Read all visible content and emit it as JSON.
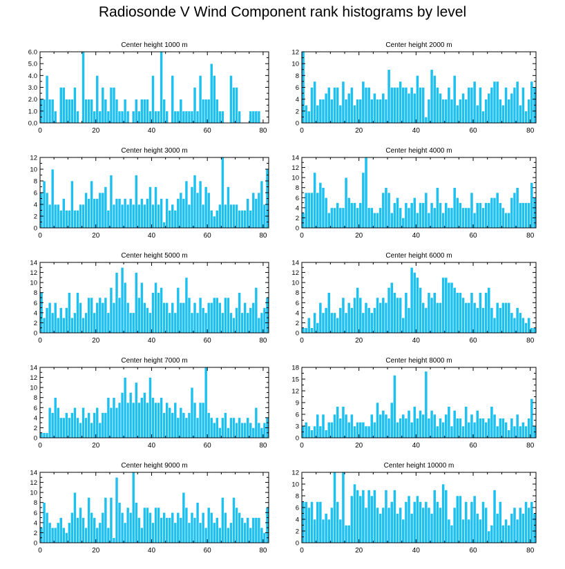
{
  "title": "Radiosonde V Wind Component rank histograms by level",
  "colors": {
    "bar": "#1ec0f0",
    "bar_stroke": "#ffffff",
    "axis": "#000000"
  },
  "chart_data": [
    {
      "type": "bar",
      "title": "Center height 1000 m",
      "xlim": [
        0,
        82
      ],
      "ylim": [
        0,
        6
      ],
      "x_ticks": [
        0,
        20,
        40,
        60,
        80
      ],
      "y_ticks": [
        0,
        1,
        2,
        3,
        4,
        5,
        6
      ],
      "y_tick_labels": [
        "0.0",
        "1.0",
        "2.0",
        "3.0",
        "4.0",
        "5.0",
        "6.0"
      ],
      "values": [
        2,
        2,
        4,
        2,
        2,
        1,
        0,
        3,
        3,
        2,
        2,
        2,
        3,
        1,
        0,
        6,
        2,
        2,
        2,
        1,
        4,
        1,
        3,
        2,
        1,
        3,
        3,
        2,
        1,
        1,
        2,
        1,
        0,
        1,
        2,
        1,
        2,
        2,
        2,
        1,
        4,
        1,
        1,
        6,
        2,
        1,
        0,
        4,
        1,
        1,
        2,
        1,
        1,
        1,
        1,
        3,
        1,
        4,
        2,
        2,
        2,
        5,
        4,
        2,
        1,
        1,
        0,
        0,
        4,
        3,
        3,
        1,
        0,
        0,
        0,
        1,
        1,
        1,
        1,
        0,
        0,
        0
      ]
    },
    {
      "type": "bar",
      "title": "Center height 2000 m",
      "xlim": [
        0,
        82
      ],
      "ylim": [
        0,
        12
      ],
      "x_ticks": [
        0,
        20,
        40,
        60,
        80
      ],
      "y_ticks": [
        0,
        2,
        4,
        6,
        8,
        10,
        12
      ],
      "y_tick_labels": [
        "0",
        "2",
        "4",
        "6",
        "8",
        "10",
        "12"
      ],
      "values": [
        12,
        3,
        2,
        6,
        7,
        3,
        4,
        4,
        5,
        6,
        4,
        6,
        6,
        3,
        7,
        4,
        5,
        6,
        3,
        4,
        4,
        7,
        6,
        6,
        4,
        5,
        4,
        4,
        5,
        4,
        9,
        6,
        6,
        6,
        7,
        6,
        6,
        5,
        6,
        5,
        8,
        6,
        6,
        1,
        4,
        9,
        8,
        6,
        5,
        4,
        4,
        6,
        4,
        8,
        3,
        4,
        5,
        4,
        6,
        6,
        7,
        3,
        6,
        2,
        4,
        5,
        6,
        7,
        7,
        4,
        3,
        6,
        4,
        5,
        6,
        7,
        3,
        6,
        2,
        4,
        7,
        6
      ]
    },
    {
      "type": "bar",
      "title": "Center height 3000 m",
      "xlim": [
        0,
        82
      ],
      "ylim": [
        0,
        12
      ],
      "x_ticks": [
        0,
        20,
        40,
        60,
        80
      ],
      "y_ticks": [
        0,
        2,
        4,
        6,
        8,
        10,
        12
      ],
      "y_tick_labels": [
        "0",
        "2",
        "4",
        "6",
        "8",
        "10",
        "12"
      ],
      "values": [
        6,
        8,
        6,
        4,
        10,
        4,
        4,
        3,
        5,
        3,
        3,
        8,
        3,
        3,
        4,
        4,
        6,
        5,
        8,
        5,
        5,
        6,
        6,
        7,
        3,
        9,
        4,
        5,
        5,
        4,
        5,
        4,
        5,
        4,
        9,
        4,
        5,
        4,
        5,
        7,
        4,
        7,
        4,
        5,
        1,
        5,
        3,
        4,
        3,
        5,
        6,
        5,
        8,
        4,
        7,
        9,
        6,
        8,
        4,
        7,
        6,
        3,
        2,
        3,
        4,
        12,
        4,
        7,
        4,
        4,
        4,
        3,
        3,
        3,
        5,
        3,
        6,
        5,
        6,
        8,
        4,
        10
      ]
    },
    {
      "type": "bar",
      "title": "Center height 4000 m",
      "xlim": [
        0,
        82
      ],
      "ylim": [
        0,
        14
      ],
      "x_ticks": [
        0,
        20,
        40,
        60,
        80
      ],
      "y_ticks": [
        0,
        2,
        4,
        6,
        8,
        10,
        12,
        14
      ],
      "y_tick_labels": [
        "0",
        "2",
        "4",
        "6",
        "8",
        "10",
        "12",
        "14"
      ],
      "values": [
        3,
        7,
        7,
        7,
        11,
        7,
        9,
        8,
        6,
        3,
        4,
        4,
        5,
        4,
        4,
        10,
        6,
        5,
        5,
        4,
        5,
        11,
        14,
        4,
        4,
        3,
        3,
        4,
        7,
        8,
        7,
        3,
        5,
        6,
        4,
        2,
        5,
        4,
        5,
        6,
        3,
        5,
        5,
        7,
        3,
        5,
        4,
        8,
        5,
        3,
        5,
        4,
        4,
        8,
        6,
        5,
        4,
        4,
        4,
        7,
        3,
        5,
        5,
        4,
        5,
        5,
        6,
        6,
        7,
        5,
        4,
        3,
        3,
        6,
        7,
        8,
        5,
        5,
        5,
        5,
        9,
        6
      ]
    },
    {
      "type": "bar",
      "title": "Center height 5000 m",
      "xlim": [
        0,
        82
      ],
      "ylim": [
        0,
        14
      ],
      "x_ticks": [
        0,
        20,
        40,
        60,
        80
      ],
      "y_ticks": [
        0,
        2,
        4,
        6,
        8,
        10,
        12,
        14
      ],
      "y_tick_labels": [
        "0",
        "2",
        "4",
        "6",
        "8",
        "10",
        "12",
        "14"
      ],
      "values": [
        8,
        3,
        5,
        6,
        4,
        6,
        3,
        5,
        3,
        5,
        8,
        3,
        4,
        8,
        6,
        3,
        4,
        7,
        7,
        4,
        6,
        7,
        6,
        7,
        4,
        9,
        6,
        12,
        7,
        13,
        10,
        6,
        4,
        4,
        12,
        7,
        10,
        6,
        5,
        4,
        8,
        10,
        8,
        9,
        6,
        6,
        4,
        6,
        4,
        9,
        6,
        6,
        11,
        7,
        4,
        6,
        4,
        7,
        5,
        4,
        6,
        6,
        7,
        7,
        6,
        4,
        7,
        7,
        4,
        3,
        5,
        8,
        4,
        6,
        4,
        5,
        6,
        9,
        3,
        4,
        5,
        7
      ]
    },
    {
      "type": "bar",
      "title": "Center height 6000 m",
      "xlim": [
        0,
        82
      ],
      "ylim": [
        0,
        14
      ],
      "x_ticks": [
        0,
        20,
        40,
        60,
        80
      ],
      "y_ticks": [
        0,
        2,
        4,
        6,
        8,
        10,
        12,
        14
      ],
      "y_tick_labels": [
        "0",
        "2",
        "4",
        "6",
        "8",
        "10",
        "12",
        "14"
      ],
      "values": [
        1,
        1,
        3,
        1,
        4,
        2,
        6,
        4,
        5,
        8,
        4,
        4,
        3,
        5,
        7,
        4,
        6,
        5,
        7,
        9,
        7,
        4,
        6,
        5,
        4,
        5,
        7,
        6,
        7,
        6,
        9,
        10,
        8,
        7,
        7,
        3,
        8,
        5,
        13,
        12,
        11,
        9,
        6,
        5,
        8,
        7,
        8,
        6,
        6,
        11,
        11,
        10,
        10,
        9,
        8,
        8,
        7,
        6,
        6,
        8,
        6,
        5,
        8,
        5,
        8,
        9,
        5,
        3,
        6,
        5,
        6,
        6,
        6,
        4,
        3,
        5,
        4,
        3,
        2,
        3,
        1,
        1
      ]
    },
    {
      "type": "bar",
      "title": "Center height 7000 m",
      "xlim": [
        0,
        82
      ],
      "ylim": [
        0,
        14
      ],
      "x_ticks": [
        0,
        20,
        40,
        60,
        80
      ],
      "y_ticks": [
        0,
        2,
        4,
        6,
        8,
        10,
        12,
        14
      ],
      "y_tick_labels": [
        "0",
        "2",
        "4",
        "6",
        "8",
        "10",
        "12",
        "14"
      ],
      "values": [
        1,
        1,
        1,
        6,
        5,
        8,
        6,
        4,
        4,
        5,
        4,
        5,
        6,
        4,
        3,
        6,
        4,
        5,
        3,
        5,
        6,
        3,
        5,
        5,
        8,
        6,
        8,
        6,
        7,
        9,
        12,
        7,
        9,
        7,
        11,
        7,
        8,
        9,
        7,
        12,
        8,
        7,
        7,
        8,
        5,
        7,
        6,
        5,
        7,
        4,
        6,
        5,
        4,
        5,
        10,
        7,
        4,
        7,
        7,
        14,
        5,
        4,
        3,
        4,
        2,
        4,
        5,
        2,
        4,
        4,
        3,
        4,
        3,
        3,
        4,
        3,
        2,
        6,
        3,
        2,
        3,
        4
      ]
    },
    {
      "type": "bar",
      "title": "Center height 8000 m",
      "xlim": [
        0,
        82
      ],
      "ylim": [
        0,
        18
      ],
      "x_ticks": [
        0,
        20,
        40,
        60,
        80
      ],
      "y_ticks": [
        0,
        3,
        6,
        9,
        12,
        15,
        18
      ],
      "y_tick_labels": [
        "0",
        "3",
        "6",
        "9",
        "12",
        "15",
        "18"
      ],
      "values": [
        3,
        4,
        3,
        2,
        3,
        6,
        3,
        6,
        2,
        4,
        4,
        6,
        8,
        5,
        8,
        6,
        4,
        6,
        3,
        4,
        4,
        4,
        3,
        3,
        6,
        4,
        9,
        6,
        7,
        6,
        5,
        9,
        16,
        4,
        5,
        6,
        5,
        7,
        4,
        8,
        5,
        7,
        6,
        17,
        5,
        7,
        6,
        3,
        5,
        4,
        6,
        8,
        3,
        7,
        5,
        5,
        3,
        8,
        4,
        6,
        4,
        7,
        5,
        5,
        4,
        5,
        8,
        6,
        3,
        5,
        5,
        4,
        2,
        5,
        3,
        6,
        3,
        4,
        3,
        5,
        10,
        3
      ]
    },
    {
      "type": "bar",
      "title": "Center height 9000 m",
      "xlim": [
        0,
        82
      ],
      "ylim": [
        0,
        14
      ],
      "x_ticks": [
        0,
        20,
        40,
        60,
        80
      ],
      "y_ticks": [
        0,
        2,
        4,
        6,
        8,
        10,
        12,
        14
      ],
      "y_tick_labels": [
        "0",
        "2",
        "4",
        "6",
        "8",
        "10",
        "12",
        "14"
      ],
      "values": [
        3,
        8,
        6,
        4,
        3,
        3,
        4,
        5,
        3,
        2,
        4,
        6,
        10,
        5,
        7,
        5,
        3,
        9,
        6,
        5,
        3,
        4,
        6,
        9,
        3,
        9,
        1,
        13,
        8,
        6,
        4,
        7,
        6,
        14,
        8,
        5,
        3,
        7,
        7,
        6,
        4,
        7,
        7,
        5,
        6,
        5,
        5,
        6,
        4,
        6,
        5,
        10,
        7,
        4,
        6,
        5,
        8,
        4,
        6,
        3,
        7,
        6,
        4,
        5,
        3,
        9,
        6,
        3,
        4,
        9,
        7,
        6,
        5,
        4,
        5,
        3,
        5,
        5,
        5,
        3,
        2,
        7
      ]
    },
    {
      "type": "bar",
      "title": "Center height 10000 m",
      "xlim": [
        0,
        82
      ],
      "ylim": [
        0,
        12
      ],
      "x_ticks": [
        0,
        20,
        40,
        60,
        80
      ],
      "y_ticks": [
        0,
        2,
        4,
        6,
        8,
        10,
        12
      ],
      "y_tick_labels": [
        "0",
        "2",
        "4",
        "6",
        "8",
        "10",
        "12"
      ],
      "values": [
        7,
        7,
        6,
        7,
        4,
        7,
        7,
        4,
        5,
        4,
        6,
        12,
        7,
        4,
        12,
        3,
        3,
        8,
        10,
        9,
        8,
        9,
        6,
        9,
        8,
        9,
        6,
        5,
        6,
        9,
        6,
        7,
        9,
        5,
        6,
        4,
        7,
        8,
        5,
        7,
        8,
        7,
        6,
        7,
        6,
        5,
        9,
        7,
        6,
        10,
        9,
        4,
        3,
        6,
        8,
        8,
        4,
        7,
        4,
        7,
        8,
        5,
        4,
        7,
        6,
        2,
        3,
        9,
        5,
        7,
        3,
        4,
        3,
        5,
        6,
        4,
        6,
        5,
        7,
        6,
        7,
        5
      ]
    }
  ]
}
